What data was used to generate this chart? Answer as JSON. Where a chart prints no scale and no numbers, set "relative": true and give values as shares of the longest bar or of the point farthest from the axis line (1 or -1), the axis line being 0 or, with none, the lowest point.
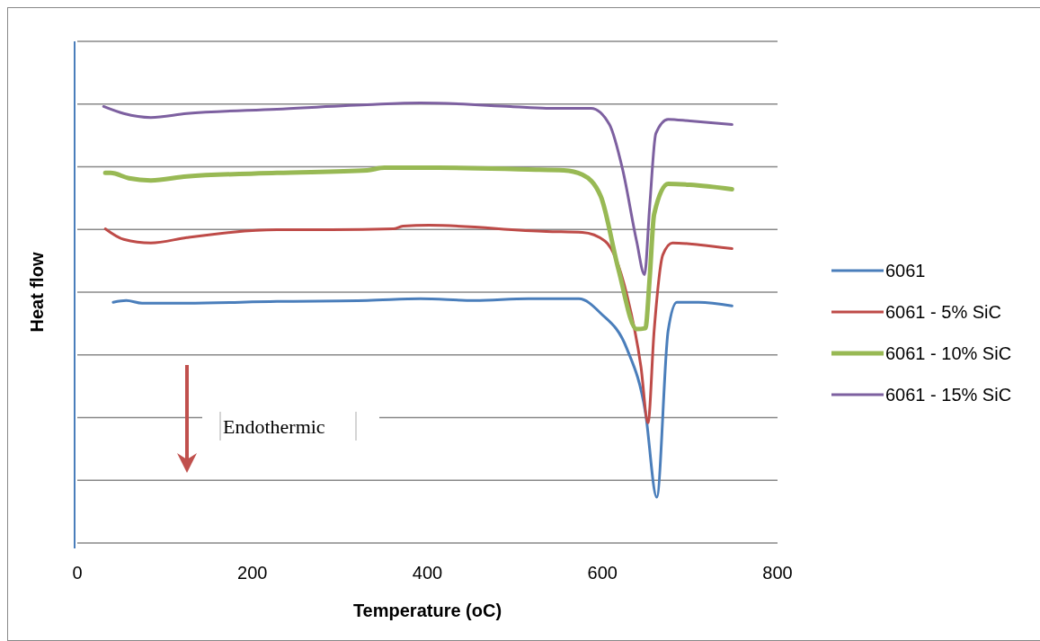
{
  "chart_data": {
    "type": "line",
    "relative": true,
    "xlabel": "Temperature (oC)",
    "ylabel": "Heat flow",
    "xlim": [
      0,
      800
    ],
    "xticks": [
      0,
      200,
      400,
      600,
      800
    ],
    "grid": "y",
    "legend": "right",
    "annotations": [
      "Endothermic"
    ],
    "series": [
      {
        "name": "6061",
        "color": "#4a7ebb",
        "x": [
          41,
          56,
          74,
          125,
          228,
          331,
          392,
          454,
          515,
          573,
          598,
          628,
          649,
          662,
          675,
          685,
          710,
          748
        ],
        "values": [
          0.547,
          0.551,
          0.545,
          0.545,
          0.549,
          0.551,
          0.555,
          0.551,
          0.555,
          0.555,
          0.522,
          0.441,
          0.298,
          0.104,
          0.482,
          0.547,
          0.547,
          0.539
        ]
      },
      {
        "name": "6061 - 5% SiC",
        "color": "#be4b48",
        "x": [
          32,
          53,
          84,
          125,
          228,
          290,
          361,
          372,
          402,
          536,
          577,
          603,
          628,
          644,
          652,
          659,
          669,
          680,
          710,
          748
        ],
        "values": [
          0.714,
          0.69,
          0.682,
          0.694,
          0.712,
          0.712,
          0.714,
          0.72,
          0.722,
          0.708,
          0.706,
          0.686,
          0.563,
          0.4,
          0.273,
          0.482,
          0.655,
          0.682,
          0.678,
          0.669
        ]
      },
      {
        "name": "6061 - 10% SiC",
        "color": "#98b954",
        "x": [
          32,
          38,
          59,
          84,
          125,
          228,
          331,
          351,
          413,
          515,
          556,
          577,
          598,
          618,
          639,
          649,
          654,
          659,
          675,
          700,
          748
        ],
        "values": [
          0.841,
          0.841,
          0.829,
          0.824,
          0.833,
          0.841,
          0.847,
          0.853,
          0.853,
          0.849,
          0.847,
          0.837,
          0.788,
          0.624,
          0.486,
          0.488,
          0.604,
          0.747,
          0.816,
          0.814,
          0.804
        ]
      },
      {
        "name": "6061 - 15% SiC",
        "color": "#7d60a0",
        "x": [
          30,
          53,
          84,
          125,
          228,
          331,
          392,
          495,
          536,
          587,
          608,
          623,
          639,
          648,
          654,
          661,
          675,
          700,
          748
        ],
        "values": [
          0.992,
          0.976,
          0.967,
          0.976,
          0.986,
          0.996,
          1,
          0.992,
          0.988,
          0.988,
          0.951,
          0.849,
          0.686,
          0.61,
          0.767,
          0.931,
          0.963,
          0.959,
          0.951
        ]
      }
    ]
  }
}
